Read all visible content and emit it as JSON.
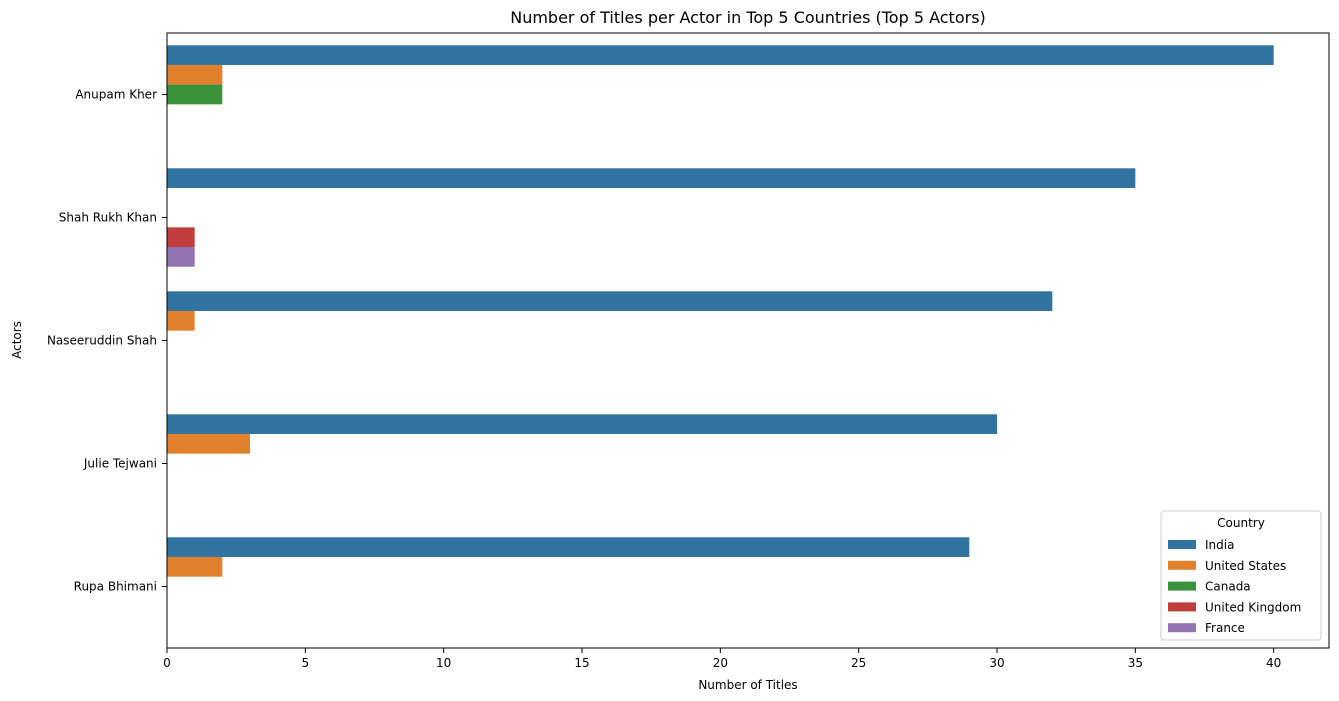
{
  "chart_data": {
    "type": "bar",
    "orientation": "horizontal",
    "title": "Number of Titles per Actor in Top 5 Countries (Top 5 Actors)",
    "xlabel": "Number of Titles",
    "ylabel": "Actors",
    "xlim": [
      0,
      42
    ],
    "xticks": [
      0,
      5,
      10,
      15,
      20,
      25,
      30,
      35,
      40
    ],
    "categories": [
      "Anupam Kher",
      "Shah Rukh Khan",
      "Naseeruddin Shah",
      "Julie Tejwani",
      "Rupa Bhimani"
    ],
    "series": [
      {
        "name": "India",
        "color": "#3274a1",
        "values": [
          40,
          35,
          32,
          30,
          29
        ]
      },
      {
        "name": "United States",
        "color": "#e1812c",
        "values": [
          2,
          0,
          1,
          3,
          2
        ]
      },
      {
        "name": "Canada",
        "color": "#3a923a",
        "values": [
          2,
          0,
          0,
          0,
          0
        ]
      },
      {
        "name": "United Kingdom",
        "color": "#c03d3e",
        "values": [
          0,
          1,
          0,
          0,
          0
        ]
      },
      {
        "name": "France",
        "color": "#9372b2",
        "values": [
          0,
          1,
          0,
          0,
          0
        ]
      }
    ],
    "legend": {
      "title": "Country",
      "position": "lower-right"
    },
    "grid": false
  }
}
